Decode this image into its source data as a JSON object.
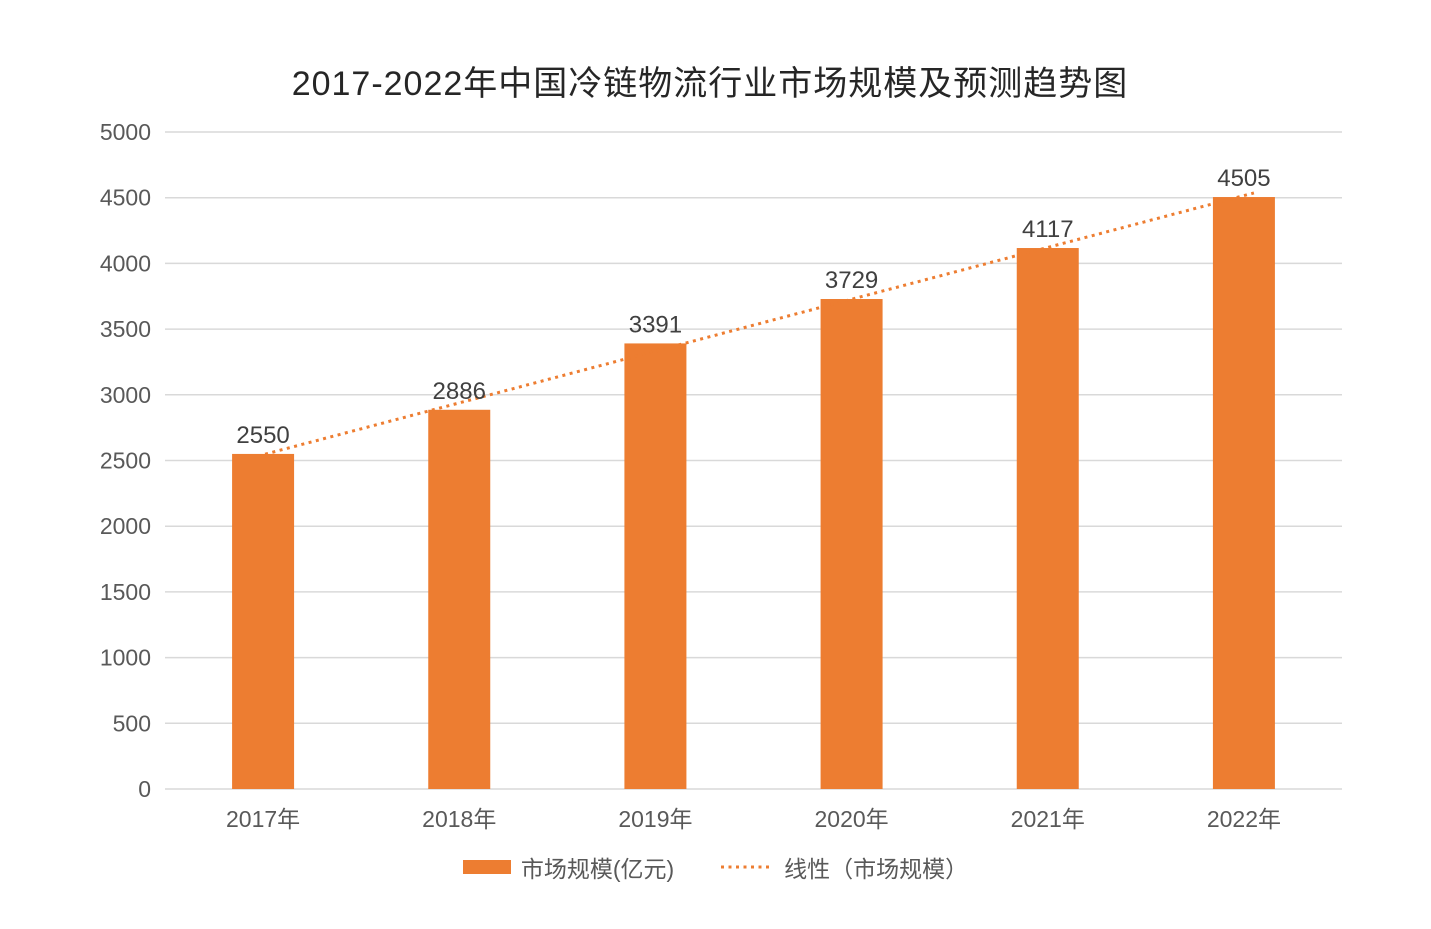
{
  "chart_data": {
    "type": "bar",
    "title": "2017-2022年中国冷链物流行业市场规模及预测趋势图",
    "categories": [
      "2017年",
      "2018年",
      "2019年",
      "2020年",
      "2021年",
      "2022年"
    ],
    "series": [
      {
        "name": "市场规模(亿元)",
        "values": [
          2550,
          2886,
          3391,
          3729,
          4117,
          4505
        ]
      }
    ],
    "trendline": {
      "name": "线性（市场规模）",
      "style": "dotted",
      "y_start": 2544,
      "y_end": 4516
    },
    "xlabel": "",
    "ylabel": "",
    "ylim": [
      0,
      5000
    ],
    "yticks": [
      0,
      500,
      1000,
      1500,
      2000,
      2500,
      3000,
      3500,
      4000,
      4500,
      5000
    ],
    "grid": true,
    "legend_position": "bottom",
    "colors": {
      "bar": "#ED7D31",
      "trend": "#ED7D31",
      "grid": "#D9D9D9",
      "axis_text": "#595959",
      "data_label": "#404040",
      "title": "#262626",
      "legend_text": "#595959",
      "background": "#FFFFFF"
    }
  }
}
